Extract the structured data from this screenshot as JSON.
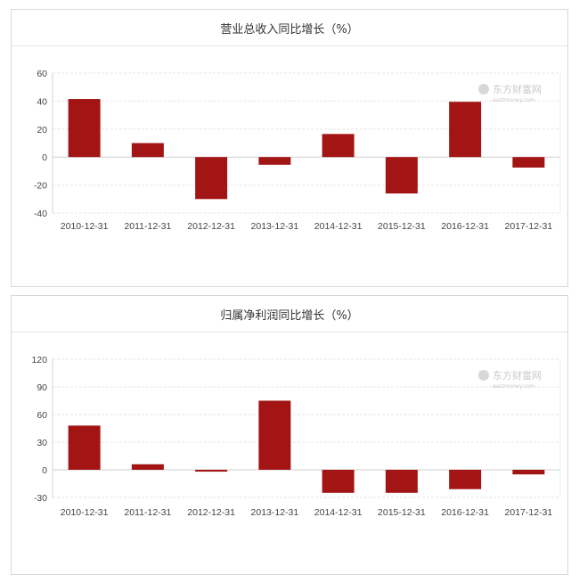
{
  "watermark": {
    "name": "东方财富网",
    "sub": "eastmoney.com"
  },
  "chart_data": [
    {
      "type": "bar",
      "title": "营业总收入同比增长（%）",
      "categories": [
        "2010-12-31",
        "2011-12-31",
        "2012-12-31",
        "2013-12-31",
        "2014-12-31",
        "2015-12-31",
        "2016-12-31",
        "2017-12-31"
      ],
      "values": [
        41.5,
        10,
        -30,
        -5.5,
        16.5,
        -26,
        39.5,
        -7.5
      ],
      "ylim": [
        -40,
        60
      ],
      "yticks": [
        -40,
        -20,
        0,
        20,
        40,
        60
      ],
      "bar_color": "#a31515",
      "grid": true
    },
    {
      "type": "bar",
      "title": "归属净利润同比增长（%）",
      "categories": [
        "2010-12-31",
        "2011-12-31",
        "2012-12-31",
        "2013-12-31",
        "2014-12-31",
        "2015-12-31",
        "2016-12-31",
        "2017-12-31"
      ],
      "values": [
        48,
        6,
        -2,
        75,
        -25,
        -25,
        -21,
        -5
      ],
      "ylim": [
        -30,
        120
      ],
      "yticks": [
        -30,
        0,
        30,
        60,
        90,
        120
      ],
      "bar_color": "#a31515",
      "grid": true
    }
  ]
}
